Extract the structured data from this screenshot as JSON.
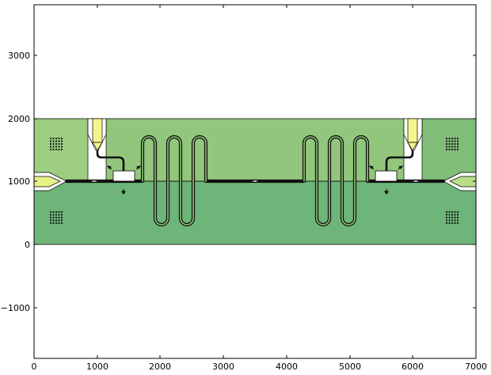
{
  "plot": {
    "x_ticks": [
      "0",
      "1000",
      "2000",
      "3000",
      "4000",
      "5000",
      "6000",
      "7000"
    ],
    "y_ticks": [
      "3000",
      "2000",
      "1000",
      "0",
      "−1000"
    ]
  },
  "colors": {
    "background": "#ffffff",
    "upper_left": "#9ccd80",
    "upper_mid": "#92c67c",
    "upper_right": "#80bd78",
    "lower": "#6eb579",
    "channel_fill": "#94c97c",
    "inlet_yellow": "#f4f58c",
    "right_port": "#b9de8a",
    "left_port": "#e6f28a",
    "outline": "#000000"
  }
}
